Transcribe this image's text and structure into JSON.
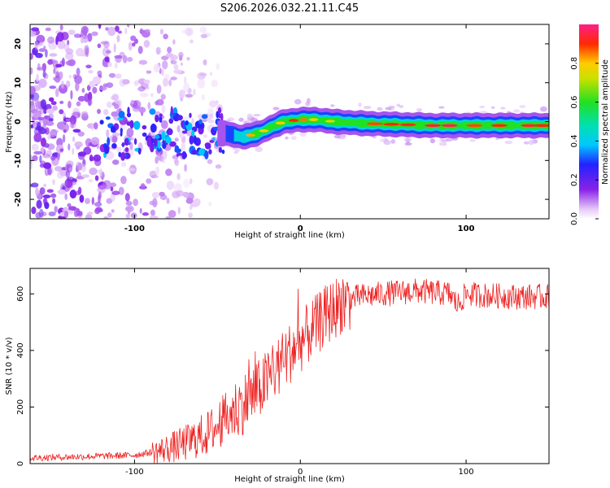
{
  "chart_data": [
    {
      "type": "heatmap",
      "title": "S206.2026.032.21.11.C45",
      "xlabel": "Height of straight line (km)",
      "ylabel": "Frequency (Hz)",
      "xlim": [
        -163,
        150
      ],
      "ylim": [
        -25,
        25
      ],
      "x_ticks": [
        "-100",
        "0",
        "100"
      ],
      "y_ticks": [
        "20",
        "10",
        "0",
        "-10",
        "-20"
      ],
      "colorbar": {
        "label": "Normalized spectral amplitude",
        "range": [
          0,
          1
        ],
        "ticks": [
          "0.0",
          "0.2",
          "0.4",
          "0.6",
          "0.8"
        ]
      },
      "ridge": {
        "description_points_km_hz": [
          [
            -115,
            -4
          ],
          [
            -90,
            -2
          ],
          [
            -70,
            -3
          ],
          [
            -55,
            -3
          ],
          [
            -45,
            -3
          ],
          [
            -35,
            -4
          ],
          [
            -25,
            -3
          ],
          [
            -18,
            -1.5
          ],
          [
            -10,
            0
          ],
          [
            0,
            0.5
          ],
          [
            10,
            0.5
          ],
          [
            20,
            0
          ],
          [
            40,
            -0.5
          ],
          [
            80,
            -1
          ],
          [
            120,
            -1
          ],
          [
            150,
            -1
          ]
        ]
      }
    },
    {
      "type": "line",
      "xlabel": "Height of straight line (km)",
      "ylabel": "SNR (10 * v/v)",
      "xlim": [
        -163,
        150
      ],
      "ylim": [
        0,
        690
      ],
      "x_ticks": [
        "-100",
        "0",
        "100"
      ],
      "y_ticks": [
        "0",
        "200",
        "400",
        "600"
      ],
      "series": [
        {
          "name": "SNR",
          "color": "#ee2222",
          "x": [
            -163,
            -130,
            -100,
            -85,
            -70,
            -55,
            -45,
            -35,
            -25,
            -15,
            -5,
            5,
            15,
            25,
            35,
            50,
            70,
            90,
            95,
            100,
            110,
            130,
            150
          ],
          "y": [
            20,
            25,
            30,
            45,
            70,
            110,
            160,
            210,
            260,
            330,
            400,
            460,
            520,
            570,
            590,
            600,
            610,
            600,
            560,
            600,
            595,
            590,
            590
          ]
        }
      ]
    }
  ]
}
